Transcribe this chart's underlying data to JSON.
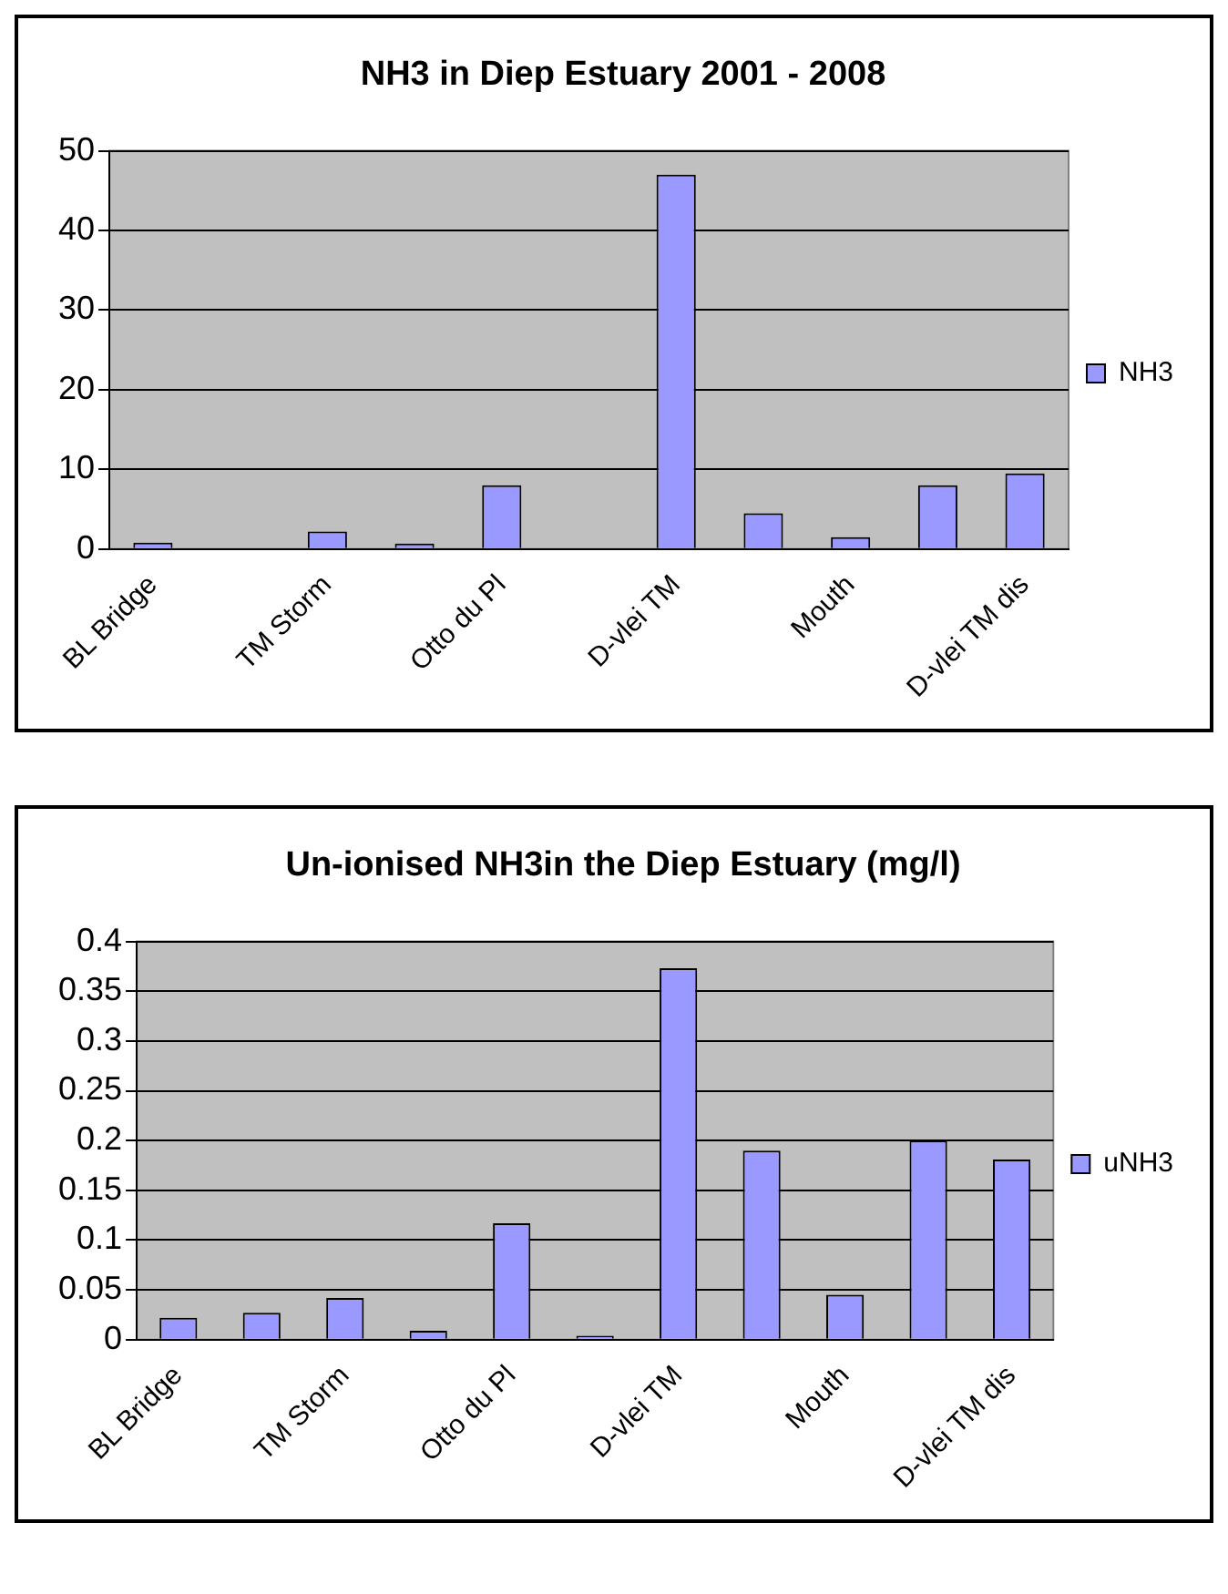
{
  "chart_data": [
    {
      "type": "bar",
      "title": "NH3 in Diep Estuary 2001 - 2008",
      "categories": [
        "BL Bridge",
        null,
        "TM Storm",
        null,
        "Otto du Pl",
        null,
        "D-vlei TM",
        null,
        "Mouth",
        null,
        "D-vlei TM dis"
      ],
      "series": [
        {
          "name": "NH3",
          "color": "#9999ff",
          "values": [
            0.8,
            null,
            2.2,
            0.7,
            8,
            null,
            47,
            4.5,
            1.5,
            8,
            9.5
          ]
        }
      ],
      "ylim": [
        0,
        50
      ],
      "yticks": [
        0,
        10,
        20,
        30,
        40,
        50
      ],
      "grid": "y",
      "legend": "right"
    },
    {
      "type": "bar",
      "title": "Un-ionised NH3in the Diep Estuary (mg/l)",
      "categories": [
        "BL Bridge",
        null,
        "TM Storm",
        null,
        "Otto du Pl",
        null,
        "D-vlei TM",
        null,
        "Mouth",
        null,
        "D-vlei TM dis"
      ],
      "series": [
        {
          "name": "uNH3",
          "color": "#9999ff",
          "values": [
            0.022,
            0.027,
            0.042,
            0.009,
            0.117,
            0.004,
            0.373,
            0.19,
            0.045,
            0.2,
            0.181
          ]
        }
      ],
      "ylim": [
        0,
        0.4
      ],
      "yticks": [
        0,
        0.05,
        0.1,
        0.15,
        0.2,
        0.25,
        0.3,
        0.35,
        0.4
      ],
      "grid": "y",
      "legend": "right"
    }
  ]
}
